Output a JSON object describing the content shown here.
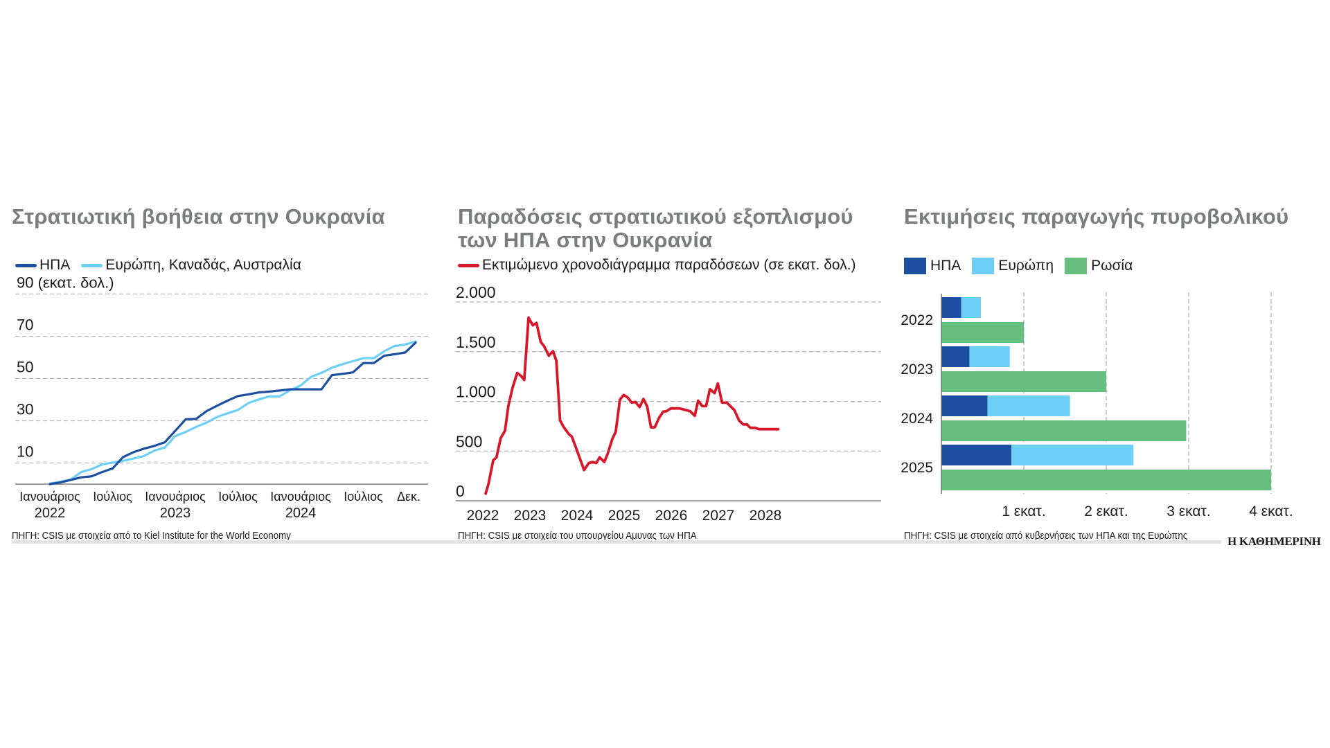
{
  "charts": {
    "aid": {
      "title": "Στρατιωτική βοήθεια στην Ουκρανία",
      "unit_label": "90 (εκατ. δολ.)",
      "source": "ΠΗΓΗ: CSIS με στοιχεία από το Kiel Institute for the World Economy",
      "legend": [
        {
          "label": "ΗΠΑ",
          "color": "#1c4fa0"
        },
        {
          "label": "Ευρώπη, Καναδάς, Αυστραλία",
          "color": "#6dcff5"
        }
      ]
    },
    "deliveries": {
      "title_line1": "Παραδόσεις στρατιωτικού εξοπλισμού",
      "title_line2": "των ΗΠΑ στην Ουκρανία",
      "source": "ΠΗΓΗ: CSIS με στοιχεία του υπουργείου Αμυνας των ΗΠΑ",
      "legend": [
        {
          "label": "Εκτιμώμενο χρονοδιάγραμμα παραδόσεων (σε εκατ. δολ.)",
          "color": "#d7182a"
        }
      ]
    },
    "artillery": {
      "title": "Εκτιμήσεις παραγωγής πυροβολικού",
      "source": "ΠΗΓΗ: CSIS με στοιχεία από κυβερνήσεις των ΗΠΑ και της Ευρώπης",
      "legend": [
        {
          "label": "ΗΠΑ",
          "color": "#1c4fa0"
        },
        {
          "label": "Ευρώπη",
          "color": "#6dcff5"
        },
        {
          "label": "Ρωσία",
          "color": "#66bf7f"
        }
      ]
    }
  },
  "credit": "Η ΚΑΘΗΜΕΡΙΝΗ",
  "chart_data": [
    {
      "type": "line",
      "title": "Στρατιωτική βοήθεια στην Ουκρανία",
      "ylabel": "εκατ. δολ.",
      "ylim": [
        0,
        90
      ],
      "yticks": [
        10,
        30,
        50,
        70,
        90
      ],
      "ytick_labels": [
        "10",
        "30",
        "50",
        "70",
        "90 (εκατ. δολ.)"
      ],
      "grid": true,
      "legend_position": "top-left",
      "x_start": "2022-01",
      "x_end": "2024-12",
      "x_ticks": [
        {
          "month_index": 0,
          "label": "Ιανουάριος",
          "sub": "2022"
        },
        {
          "month_index": 6,
          "label": "Ιούλιος",
          "sub": ""
        },
        {
          "month_index": 12,
          "label": "Ιανουάριος",
          "sub": "2023"
        },
        {
          "month_index": 18,
          "label": "Ιούλιος",
          "sub": ""
        },
        {
          "month_index": 24,
          "label": "Ιανουάριος",
          "sub": "2024"
        },
        {
          "month_index": 30,
          "label": "Ιούλιος",
          "sub": ""
        },
        {
          "month_index": 35,
          "label": "Δεκ.",
          "sub": ""
        }
      ],
      "series": [
        {
          "name": "ΗΠΑ",
          "color": "#1c4fa0",
          "values": [
            0,
            0.8,
            2.0,
            3.2,
            3.7,
            5.7,
            7.4,
            12.8,
            15.1,
            16.8,
            18.1,
            19.8,
            25.2,
            30.7,
            30.9,
            34.6,
            37.1,
            39.5,
            41.7,
            42.5,
            43.4,
            43.8,
            44.3,
            44.9,
            44.9,
            44.9,
            44.9,
            51.6,
            52.2,
            52.9,
            57.3,
            57.3,
            60.8,
            61.5,
            62.3,
            67.0
          ]
        },
        {
          "name": "Ευρώπη, Καναδάς, Αυστραλία",
          "color": "#6dcff5",
          "values": [
            0.3,
            1.1,
            2.2,
            5.7,
            7.1,
            9.3,
            10.2,
            11.0,
            12.1,
            13.3,
            15.9,
            17.3,
            22.8,
            24.7,
            27.1,
            29.1,
            31.8,
            33.5,
            35.1,
            38.4,
            40.1,
            41.5,
            41.5,
            44.5,
            46.7,
            50.8,
            52.7,
            55.1,
            56.8,
            58.2,
            59.6,
            59.6,
            62.9,
            65.4,
            66.1,
            67.5
          ]
        }
      ]
    },
    {
      "type": "line",
      "title": "Παραδόσεις στρατιωτικού εξοπλισμού των ΗΠΑ στην Ουκρανία",
      "ylabel": "εκατ. δολ.",
      "ylim": [
        0,
        2000
      ],
      "yticks": [
        0,
        500,
        1000,
        1500,
        2000
      ],
      "ytick_labels": [
        "0",
        "500",
        "1.000",
        "1.500",
        "2.000"
      ],
      "xlim": [
        2021.8,
        2028.6
      ],
      "xticks": [
        2022,
        2023,
        2024,
        2025,
        2026,
        2027,
        2028
      ],
      "xtick_labels": [
        "2022",
        "2023",
        "2024",
        "2025",
        "2026",
        "2027",
        "2028"
      ],
      "grid": true,
      "legend_position": "top-left",
      "series": [
        {
          "name": "Εκτιμώμενο χρονοδιάγραμμα παραδόσεων (σε εκατ. δολ.)",
          "color": "#d7182a",
          "x": [
            2022.06,
            2022.12,
            2022.22,
            2022.29,
            2022.38,
            2022.47,
            2022.54,
            2022.63,
            2022.73,
            2022.81,
            2022.88,
            2022.97,
            2023.06,
            2023.14,
            2023.23,
            2023.3,
            2023.4,
            2023.49,
            2023.56,
            2023.64,
            2023.72,
            2023.83,
            2023.89,
            2023.99,
            2024.15,
            2024.25,
            2024.33,
            2024.41,
            2024.48,
            2024.58,
            2024.65,
            2024.75,
            2024.82,
            2024.91,
            2024.99,
            2025.07,
            2025.16,
            2025.24,
            2025.33,
            2025.41,
            2025.49,
            2025.57,
            2025.65,
            2025.74,
            2025.83,
            2025.9,
            2025.99,
            2026.08,
            2026.18,
            2026.4,
            2026.5,
            2026.57,
            2026.66,
            2026.74,
            2026.82,
            2026.92,
            2026.99,
            2027.08,
            2027.18,
            2027.34,
            2027.44,
            2027.53,
            2027.61,
            2027.68,
            2027.79,
            2027.86,
            2027.96,
            2028.08,
            2028.27
          ],
          "values": [
            72,
            170,
            407,
            437,
            630,
            704,
            948,
            1134,
            1285,
            1257,
            1215,
            1842,
            1765,
            1789,
            1598,
            1556,
            1459,
            1505,
            1410,
            808,
            739,
            669,
            646,
            518,
            309,
            379,
            390,
            379,
            437,
            390,
            472,
            623,
            692,
            1017,
            1064,
            1041,
            987,
            994,
            943,
            1024,
            948,
            739,
            739,
            832,
            897,
            901,
            929,
            929,
            929,
            901,
            855,
            1006,
            952,
            952,
            1122,
            1083,
            1180,
            987,
            987,
            913,
            808,
            767,
            767,
            734,
            734,
            720,
            720,
            720,
            720
          ]
        }
      ]
    },
    {
      "type": "bar",
      "orientation": "horizontal",
      "title": "Εκτιμήσεις παραγωγής πυροβολικού",
      "categories": [
        "2022",
        "2023",
        "2024",
        "2025"
      ],
      "xlim": [
        0,
        4
      ],
      "xticks": [
        1,
        2,
        3,
        4
      ],
      "xtick_labels": [
        "1 εκατ.",
        "2 εκατ.",
        "3 εκατ.",
        "4 εκατ."
      ],
      "grid": true,
      "legend_position": "top-left",
      "stacked_group": [
        "ΗΠΑ",
        "Ευρώπη"
      ],
      "series": [
        {
          "name": "ΗΠΑ",
          "color": "#1c4fa0",
          "values": [
            0.24,
            0.34,
            0.56,
            0.85
          ]
        },
        {
          "name": "Ευρώπη",
          "color": "#6dcff5",
          "values": [
            0.24,
            0.49,
            1.0,
            1.48
          ]
        },
        {
          "name": "Ρωσία",
          "color": "#66bf7f",
          "values": [
            1.0,
            2.0,
            2.97,
            4.0
          ]
        }
      ]
    }
  ]
}
